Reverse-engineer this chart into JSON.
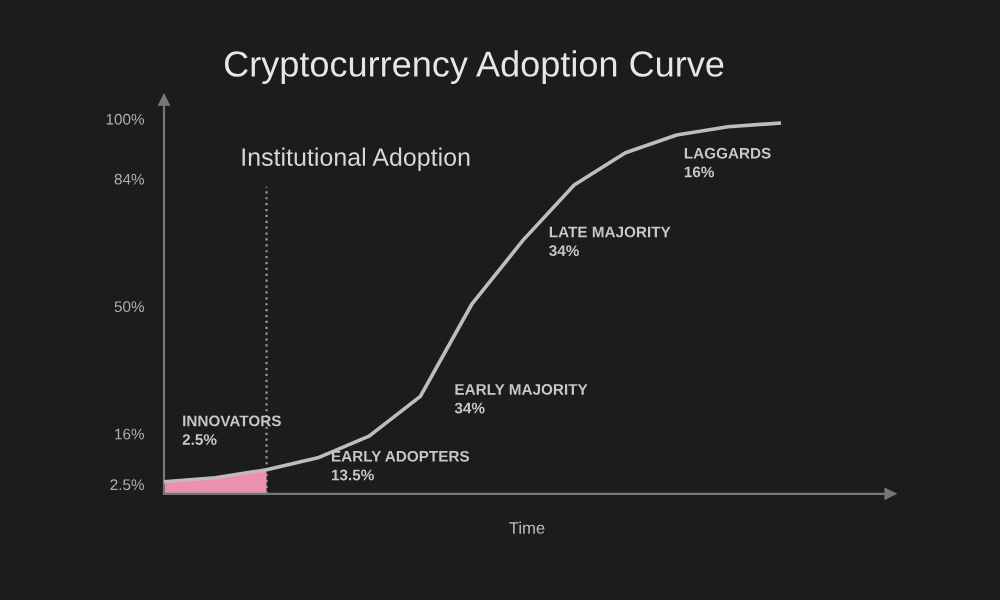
{
  "chart_data": {
    "type": "line",
    "title": "Cryptocurrency Adoption Curve",
    "xlabel": "Time",
    "categories": [
      null,
      null,
      null,
      null,
      null,
      null,
      null,
      null,
      null,
      null,
      null,
      null,
      null
    ],
    "ylim": [
      0,
      105
    ],
    "yticks": [
      {
        "value": 2.5,
        "label": "2.5%"
      },
      {
        "value": 16,
        "label": "16%"
      },
      {
        "value": 50,
        "label": "50%"
      },
      {
        "value": 84,
        "label": "84%"
      },
      {
        "value": 100,
        "label": "100%"
      }
    ],
    "tick_labels": "y",
    "grid": false,
    "legend": false,
    "marker": "none",
    "line_style": "solid",
    "series": [
      {
        "color": "#bdbdbd",
        "values": [
          3.2,
          4.3,
          6.4,
          9.6,
          15.4,
          26,
          50.5,
          67.6,
          82.4,
          91,
          95.7,
          97.9,
          98.9
        ]
      }
    ],
    "annotations": [
      "Institutional Adoption",
      "INNOVATORS\n2.5%",
      "EARLY ADOPTERS\n13.5%",
      "EARLY MAJORITY\n34%",
      "LATE MAJORITY\n34%",
      "LAGGARDS\n16%"
    ]
  }
}
